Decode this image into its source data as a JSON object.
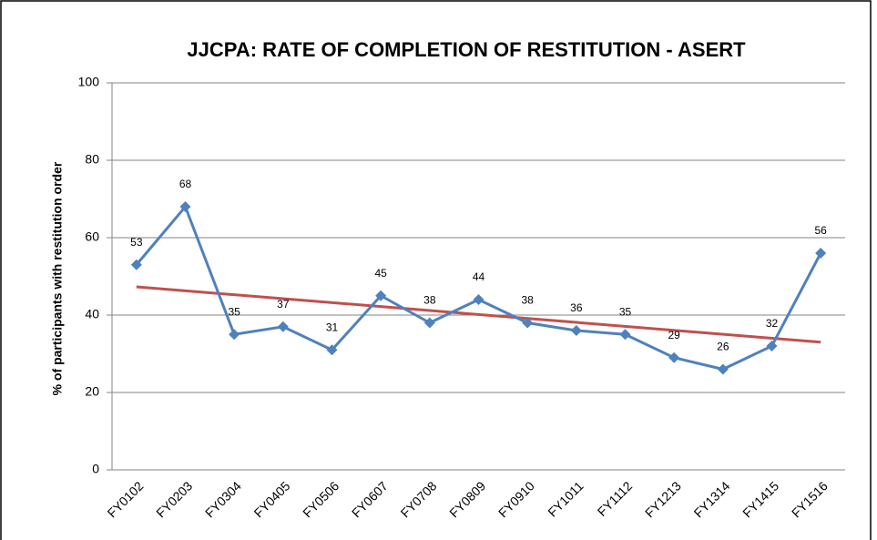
{
  "chart_data": {
    "type": "line",
    "title": "JJCPA: RATE OF COMPLETION  OF RESTITUTION - ASERT",
    "y_label": "% of participants  with restitution order",
    "categories": [
      "FY0102",
      "FY0203",
      "FY0304",
      "FY0405",
      "FY0506",
      "FY0607",
      "FY0708",
      "FY0809",
      "FY0910",
      "FY1011",
      "FY1112",
      "FY1213",
      "FY1314",
      "FY1415",
      "FY1516"
    ],
    "series": [
      {
        "color": "#4f81bd",
        "values": [
          53,
          68,
          35,
          37,
          31,
          45,
          38,
          44,
          38,
          36,
          35,
          29,
          26,
          32,
          56
        ]
      }
    ],
    "trendline": {
      "color": "#c0504d",
      "values": [
        47.3,
        33
      ]
    },
    "ylim": [
      0,
      100
    ],
    "yticks": [
      0,
      20,
      40,
      60,
      80,
      100
    ],
    "grid": true
  }
}
